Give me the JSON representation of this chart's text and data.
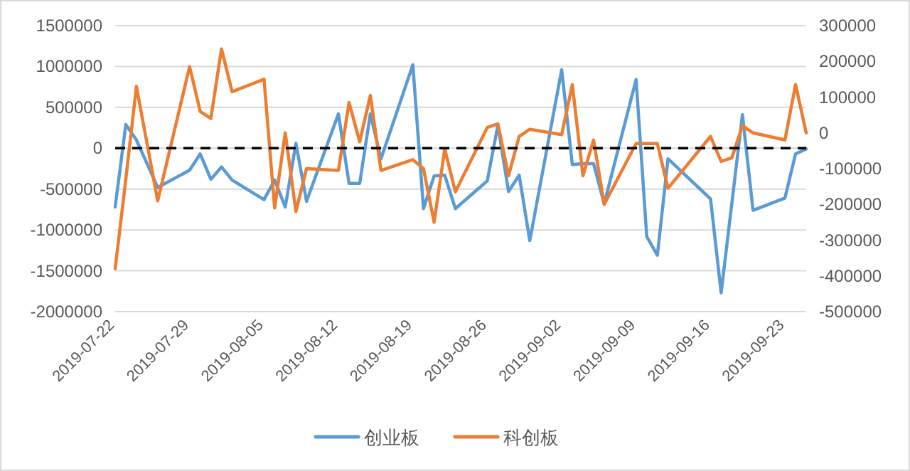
{
  "chart_data": {
    "type": "line",
    "x": [
      "2019-07-22",
      "2019-07-23",
      "2019-07-24",
      "2019-07-25",
      "2019-07-26",
      "2019-07-29",
      "2019-07-30",
      "2019-07-31",
      "2019-08-01",
      "2019-08-02",
      "2019-08-05",
      "2019-08-06",
      "2019-08-07",
      "2019-08-08",
      "2019-08-09",
      "2019-08-12",
      "2019-08-13",
      "2019-08-14",
      "2019-08-15",
      "2019-08-16",
      "2019-08-19",
      "2019-08-20",
      "2019-08-21",
      "2019-08-22",
      "2019-08-23",
      "2019-08-26",
      "2019-08-27",
      "2019-08-28",
      "2019-08-29",
      "2019-08-30",
      "2019-09-02",
      "2019-09-03",
      "2019-09-04",
      "2019-09-05",
      "2019-09-06",
      "2019-09-09",
      "2019-09-10",
      "2019-09-11",
      "2019-09-12",
      "2019-09-16",
      "2019-09-17",
      "2019-09-18",
      "2019-09-19",
      "2019-09-20",
      "2019-09-23",
      "2019-09-24",
      "2019-09-25"
    ],
    "series": [
      {
        "name": "创业板",
        "color": "#5b9bd5",
        "values": [
          -720000,
          290000,
          100000,
          -190000,
          -480000,
          -270000,
          -70000,
          -380000,
          -230000,
          -390000,
          -630000,
          -390000,
          -720000,
          60000,
          -650000,
          420000,
          -430000,
          -430000,
          420000,
          -130000,
          1020000,
          -740000,
          -340000,
          -330000,
          -740000,
          -400000,
          280000,
          -530000,
          -330000,
          -1130000,
          960000,
          -200000,
          -190000,
          -190000,
          -680000,
          840000,
          -1080000,
          -1310000,
          -130000,
          -620000,
          -1770000,
          -680000,
          410000,
          -760000,
          -610000,
          -70000,
          -10000
        ]
      },
      {
        "name": "科创板",
        "color": "#ed7d31",
        "axis": "y2",
        "values": [
          -380000,
          -130000,
          130000,
          -30000,
          -190000,
          185000,
          60000,
          40000,
          235000,
          115000,
          150000,
          -210000,
          0,
          -220000,
          -100000,
          -105000,
          85000,
          -25000,
          105000,
          -105000,
          -75000,
          -100000,
          -250000,
          -45000,
          -165000,
          15000,
          25000,
          -120000,
          -10000,
          10000,
          -5000,
          135000,
          -120000,
          -20000,
          -200000,
          -30000,
          -30000,
          -30000,
          -155000,
          -10000,
          -80000,
          -70000,
          20000,
          0,
          -20000,
          135000,
          0
        ]
      }
    ],
    "xlim": [
      "2019-07-22",
      "2019-09-25"
    ],
    "xticks": [
      "2019-07-22",
      "2019-07-29",
      "2019-08-05",
      "2019-08-12",
      "2019-08-19",
      "2019-08-26",
      "2019-09-02",
      "2019-09-09",
      "2019-09-16",
      "2019-09-23"
    ],
    "ylim": [
      -2000000,
      1500000
    ],
    "yticks": [
      -2000000,
      -1500000,
      -1000000,
      -500000,
      0,
      500000,
      1000000,
      1500000
    ],
    "y2lim": [
      -500000,
      300000
    ],
    "y2ticks": [
      -500000,
      -400000,
      -300000,
      -200000,
      -100000,
      0,
      100000,
      200000,
      300000
    ],
    "ref_lines": [
      {
        "axis": "y",
        "value": 0,
        "color": "#000000",
        "line_style": "dashed"
      }
    ],
    "grid": "y",
    "legend": "bottom"
  }
}
